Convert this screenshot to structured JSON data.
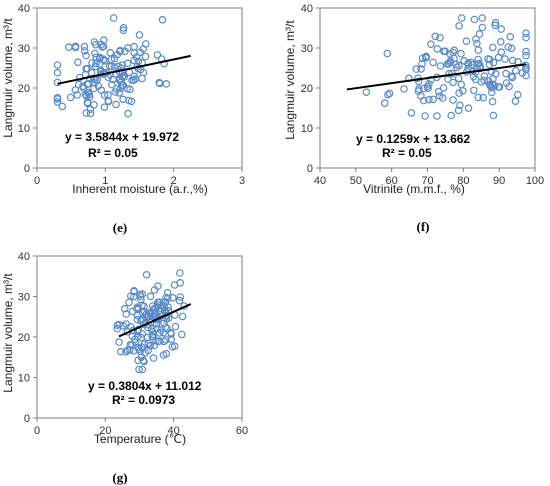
{
  "chart_data": [
    {
      "type": "scatter",
      "panel_label": "(e)",
      "xlabel": "Inherent moisture (a.r.,%)",
      "ylabel": "Langmuir volume, m³/t",
      "xlim": [
        0,
        3
      ],
      "ylim": [
        0,
        40
      ],
      "xticks": [
        "0",
        "1",
        "2",
        "3"
      ],
      "yticks": [
        "0",
        "10",
        "20",
        "30",
        "40"
      ],
      "grid": false,
      "marker_color": "#5b8bc6",
      "trendline": {
        "slope": 3.5844,
        "intercept": 19.972,
        "x_range": [
          0.3,
          2.25
        ]
      },
      "equation": "y = 3.5844x + 19.972",
      "r2": "R² = 0.05",
      "seed": 11,
      "point_spec": {
        "n": 150,
        "x_mean": 1.05,
        "x_sd": 0.34,
        "x_clip": [
          0.3,
          2.25
        ],
        "y_sd": 5.3,
        "y_clip": [
          12,
          37.5
        ]
      }
    },
    {
      "type": "scatter",
      "panel_label": "(f)",
      "xlabel": "Vitrinite (m.m.f., %)",
      "ylabel": "Langmuir volume, m³/t",
      "xlim": [
        40,
        100
      ],
      "ylim": [
        0,
        40
      ],
      "xticks": [
        "40",
        "50",
        "60",
        "70",
        "80",
        "90",
        "100"
      ],
      "yticks": [
        "0",
        "10",
        "20",
        "30",
        "40"
      ],
      "grid": false,
      "marker_color": "#5b8bc6",
      "trendline": {
        "slope": 0.1259,
        "intercept": 13.662,
        "x_range": [
          47.5,
          97.5
        ]
      },
      "equation": "y = 0.1259x + 13.662",
      "r2": "R² = 0.05",
      "seed": 23,
      "point_spec": {
        "n": 150,
        "x_mean": 80,
        "x_sd": 10,
        "x_clip": [
          47,
          97.5
        ],
        "y_sd": 5.2,
        "y_clip": [
          13,
          37.5
        ]
      }
    },
    {
      "type": "scatter",
      "panel_label": "(g)",
      "xlabel": "Temperature (℃)",
      "ylabel": "Langmuir volume, m³/t",
      "xlim": [
        0,
        60
      ],
      "ylim": [
        0,
        40
      ],
      "xticks": [
        "0",
        "20",
        "40",
        "60"
      ],
      "yticks": [
        "0",
        "10",
        "20",
        "30",
        "40"
      ],
      "grid": false,
      "marker_color": "#5b8bc6",
      "trendline": {
        "slope": 0.3804,
        "intercept": 11.012,
        "x_range": [
          24,
          45
        ]
      },
      "equation": "y = 0.3804x + 11.012",
      "r2": "R² = 0.0973",
      "seed": 37,
      "point_spec": {
        "n": 150,
        "x_mean": 33,
        "x_sd": 4.2,
        "x_clip": [
          23.5,
          45
        ],
        "y_sd": 5.0,
        "y_clip": [
          12,
          37.5
        ]
      }
    }
  ]
}
